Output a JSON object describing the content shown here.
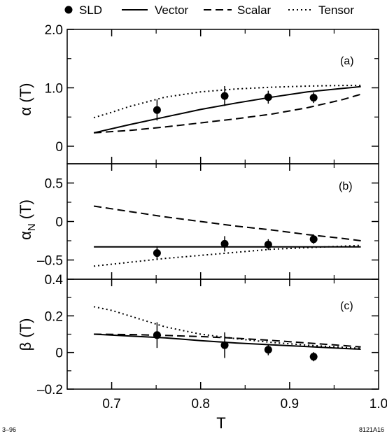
{
  "figure": {
    "corner_left": "3–96",
    "corner_right": "8121A16",
    "xlabel": "T"
  },
  "legend": [
    {
      "label": "SLD",
      "style": "marker"
    },
    {
      "label": "Vector",
      "style": "solid"
    },
    {
      "label": "Scalar",
      "style": "dashed"
    },
    {
      "label": "Tensor",
      "style": "dotted"
    }
  ],
  "chart_data": [
    {
      "type": "line",
      "panel_label": "(a)",
      "ylabel_main": "α",
      "ylabel_sub": "",
      "ylabel_arg": " (T)",
      "xlim": [
        0.65,
        1.0
      ],
      "ylim": [
        -0.3,
        2.0
      ],
      "yticks": [
        0,
        1.0,
        2.0
      ],
      "ytick_labels": [
        "0",
        "1.0",
        "2.0"
      ],
      "yminor": [
        0.5,
        1.5
      ],
      "xticks": [
        0.7,
        0.8,
        0.9,
        1.0
      ],
      "xminor": [
        0.75,
        0.85,
        0.95
      ],
      "series": [
        {
          "name": "Vector",
          "style": "solid",
          "x": [
            0.68,
            0.72,
            0.76,
            0.8,
            0.84,
            0.88,
            0.92,
            0.96,
            0.98
          ],
          "y": [
            0.23,
            0.37,
            0.5,
            0.63,
            0.74,
            0.84,
            0.93,
            0.99,
            1.02
          ]
        },
        {
          "name": "Scalar",
          "style": "dashed",
          "x": [
            0.68,
            0.72,
            0.76,
            0.8,
            0.84,
            0.88,
            0.92,
            0.96,
            0.98
          ],
          "y": [
            0.23,
            0.27,
            0.33,
            0.4,
            0.47,
            0.55,
            0.66,
            0.8,
            0.89
          ]
        },
        {
          "name": "Tensor",
          "style": "dotted",
          "x": [
            0.68,
            0.7,
            0.72,
            0.74,
            0.76,
            0.8,
            0.84,
            0.88,
            0.92,
            0.96,
            0.98
          ],
          "y": [
            0.49,
            0.58,
            0.68,
            0.76,
            0.84,
            0.93,
            0.98,
            1.01,
            1.03,
            1.04,
            1.04
          ]
        },
        {
          "name": "SLD",
          "style": "marker",
          "x": [
            0.751,
            0.827,
            0.876,
            0.927
          ],
          "y": [
            0.62,
            0.86,
            0.84,
            0.83
          ],
          "err": [
            0.18,
            0.17,
            0.11,
            0.09
          ]
        }
      ]
    },
    {
      "type": "line",
      "panel_label": "(b)",
      "ylabel_main": "α",
      "ylabel_sub": "N",
      "ylabel_arg": " (T)",
      "xlim": [
        0.65,
        1.0
      ],
      "ylim": [
        -0.75,
        0.75
      ],
      "yticks": [
        -0.5,
        0,
        0.5
      ],
      "ytick_labels": [
        "–0.5",
        "0",
        "0.5"
      ],
      "yminor": [
        -0.25,
        0.25
      ],
      "xticks": [
        0.7,
        0.8,
        0.9,
        1.0
      ],
      "xminor": [
        0.75,
        0.85,
        0.95
      ],
      "series": [
        {
          "name": "Vector",
          "style": "solid",
          "x": [
            0.68,
            0.98
          ],
          "y": [
            -0.33,
            -0.33
          ]
        },
        {
          "name": "Scalar",
          "style": "dashed",
          "x": [
            0.68,
            0.72,
            0.76,
            0.8,
            0.84,
            0.88,
            0.92,
            0.96,
            0.98
          ],
          "y": [
            0.2,
            0.13,
            0.06,
            0.0,
            -0.06,
            -0.11,
            -0.17,
            -0.22,
            -0.25
          ]
        },
        {
          "name": "Tensor",
          "style": "dotted",
          "x": [
            0.68,
            0.72,
            0.76,
            0.8,
            0.84,
            0.88,
            0.92,
            0.96,
            0.98
          ],
          "y": [
            -0.58,
            -0.53,
            -0.48,
            -0.44,
            -0.4,
            -0.36,
            -0.34,
            -0.32,
            -0.31
          ]
        },
        {
          "name": "SLD",
          "style": "marker",
          "x": [
            0.751,
            0.827,
            0.876,
            0.927
          ],
          "y": [
            -0.41,
            -0.29,
            -0.3,
            -0.23
          ],
          "err": [
            0.09,
            0.1,
            0.07,
            0.06
          ]
        }
      ]
    },
    {
      "type": "line",
      "panel_label": "(c)",
      "ylabel_main": "β",
      "ylabel_sub": "",
      "ylabel_arg": " (T)",
      "xlim": [
        0.65,
        1.0
      ],
      "ylim": [
        -0.2,
        0.4
      ],
      "yticks": [
        -0.2,
        0,
        0.2,
        0.4
      ],
      "ytick_labels": [
        "–0.2",
        "0",
        "0.2",
        "0.4"
      ],
      "yminor": [
        -0.1,
        0.1,
        0.3
      ],
      "xticks": [
        0.7,
        0.8,
        0.9,
        1.0
      ],
      "xtick_labels": [
        "0.7",
        "0.8",
        "0.9",
        "1.0"
      ],
      "xminor": [
        0.75,
        0.85,
        0.95
      ],
      "series": [
        {
          "name": "Vector",
          "style": "solid",
          "x": [
            0.68,
            0.72,
            0.76,
            0.8,
            0.84,
            0.88,
            0.92,
            0.96,
            0.98
          ],
          "y": [
            0.1,
            0.09,
            0.08,
            0.065,
            0.052,
            0.042,
            0.032,
            0.022,
            0.018
          ]
        },
        {
          "name": "Scalar",
          "style": "dashed",
          "x": [
            0.68,
            0.72,
            0.76,
            0.8,
            0.84,
            0.88,
            0.92,
            0.96,
            0.98
          ],
          "y": [
            0.1,
            0.098,
            0.093,
            0.087,
            0.078,
            0.066,
            0.052,
            0.038,
            0.03
          ]
        },
        {
          "name": "Tensor",
          "style": "dotted",
          "x": [
            0.68,
            0.7,
            0.72,
            0.74,
            0.76,
            0.78,
            0.8,
            0.84,
            0.88,
            0.92,
            0.96,
            0.98
          ],
          "y": [
            0.25,
            0.23,
            0.2,
            0.17,
            0.14,
            0.12,
            0.1,
            0.075,
            0.055,
            0.04,
            0.028,
            0.022
          ]
        },
        {
          "name": "SLD",
          "style": "marker",
          "x": [
            0.751,
            0.827,
            0.876,
            0.927
          ],
          "y": [
            0.095,
            0.04,
            0.015,
            -0.023
          ],
          "err": [
            0.07,
            0.07,
            0.03,
            0.025
          ]
        }
      ]
    }
  ]
}
